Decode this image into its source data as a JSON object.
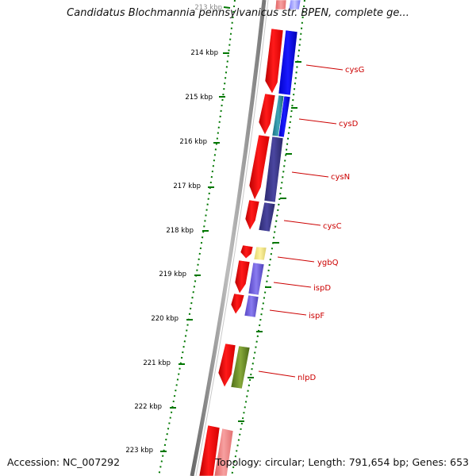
{
  "title": "Candidatus Blochmannia pennsylvanicus str. BPEN, complete ge...",
  "footer": {
    "accession": "Accession: NC_007292",
    "summary": "Topology: circular; Length: 791,654 bp; Genes: 653"
  },
  "kbp_labels": [
    {
      "id": "213",
      "text": "213 kbp"
    },
    {
      "id": "214",
      "text": "214 kbp"
    },
    {
      "id": "215",
      "text": "215 kbp"
    },
    {
      "id": "216",
      "text": "216 kbp"
    },
    {
      "id": "217",
      "text": "217 kbp"
    },
    {
      "id": "218",
      "text": "218 kbp"
    },
    {
      "id": "219",
      "text": "219 kbp"
    },
    {
      "id": "220",
      "text": "220 kbp"
    },
    {
      "id": "221",
      "text": "221 kbp"
    },
    {
      "id": "222",
      "text": "222 kbp"
    },
    {
      "id": "223",
      "text": "223 kbp"
    }
  ],
  "gene_labels": [
    {
      "id": "cysG",
      "text": "cysG"
    },
    {
      "id": "cysD",
      "text": "cysD"
    },
    {
      "id": "cysN",
      "text": "cysN"
    },
    {
      "id": "cysC",
      "text": "cysC"
    },
    {
      "id": "ygbQ",
      "text": "ygbQ"
    },
    {
      "id": "ispD",
      "text": "ispD"
    },
    {
      "id": "ispF",
      "text": "ispF"
    },
    {
      "id": "nlpD",
      "text": "nlpD"
    }
  ],
  "colors": {
    "cds_strand": "#ff0000",
    "cds_strand_faded": "#f08a8a",
    "cog_blue": "#0000ff",
    "cog_teal": "#2a8a9a",
    "cog_indigo": "#3c3a8c",
    "cog_yellow": "#f2e88a",
    "cog_violet": "#6a5ad8",
    "cog_olive": "#6b8e23",
    "label_red": "#cc0000",
    "tick_green": "#007700",
    "backbone": "#8a8a8a"
  }
}
